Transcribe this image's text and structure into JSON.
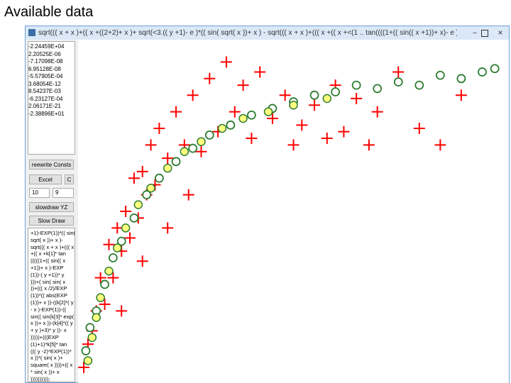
{
  "slide_title": "Available data",
  "window": {
    "title": "sqrt((( x + x )+(( x +((2+2)+ x )+ sqrt(<3.(( y +1)- e )*(( sin( sqrt( x ))+ x ) - sqrt((( x + x )+((( x +(( x +<(1 .. tan((((1+(( sin(( x +1))+ x)- e ))-( y +1))* y ))+( sin( sin( x ))+((..."
  },
  "constants": [
    "-2.24459E+04",
    "2.20525E-06",
    "-7.17098E-08",
    "6.95128E-08",
    "-5.57905E-04",
    "3.68054E-12",
    "8.54237E-03",
    "-6.23127E-04",
    "2.06171E-21",
    "-2.38896E+01"
  ],
  "buttons": {
    "rewrite": "reewrite Consts",
    "excel": "Excel",
    "c": "C",
    "slowdraw_yz": "slowdraw YZ",
    "slow_draw": "Slow Draw"
  },
  "spinners": [
    10,
    9
  ],
  "code_lines": [
    "+1)-EXP(1))*(( sin(",
    "sqrt( x ))+ x )-",
    "sqrt((( x + x )+((( x",
    "+(( x +k[1]* tan",
    "(((((1+(( sin(( x",
    "+1))+ x )-EXP",
    "(1))-( y +1))* y",
    ")))+( sin( sin( x",
    "))+((( x /2)/EXP",
    "(1))*(( abs(EXP",
    "(1))+ x ))-((k[2]*( y",
    "- x )-EXP(1))-((",
    "sin(( sin(k[3]* exp(",
    " x ))+ x ))-(k[4]*(( y",
    "+ y )+3)* y ))- x",
    ")))))+(((EXP",
    "(1)+1)*k[5]* tan",
    "((( y -2)*EXP(1))*",
    " x ))*( sin( x )+",
    "square( x ))))+(( x",
    "* sin( x ))+ x",
    "))))))))));"
  ],
  "chart_data": {
    "type": "scatter",
    "xlim": [
      0,
      100
    ],
    "ylim": [
      0,
      100
    ],
    "series": [
      {
        "color": "#ff0000",
        "marker": "cross",
        "x": [
          0,
          1,
          2,
          3,
          4,
          5,
          6,
          7,
          8,
          9,
          10,
          11,
          12,
          13,
          14,
          15,
          16,
          17,
          18,
          20,
          22,
          24,
          26,
          28,
          30,
          32,
          34,
          36,
          38,
          40,
          42,
          45,
          48,
          50,
          52,
          55,
          58,
          60,
          62,
          65,
          68,
          70,
          75,
          80,
          85,
          90,
          9,
          14,
          20,
          25
        ],
        "values": [
          3,
          10,
          14,
          20,
          30,
          22,
          40,
          30,
          45,
          38,
          50,
          42,
          60,
          48,
          62,
          55,
          70,
          58,
          75,
          66,
          80,
          70,
          85,
          68,
          90,
          74,
          95,
          80,
          88,
          72,
          92,
          78,
          85,
          70,
          76,
          82,
          72,
          88,
          74,
          84,
          70,
          80,
          92,
          75,
          70,
          85,
          20,
          35,
          45,
          55
        ]
      },
      {
        "color": "#2e7d32",
        "marker": "circle",
        "x": [
          0.5,
          1.5,
          3,
          5,
          7,
          9,
          12,
          15,
          18,
          22,
          26,
          30,
          35,
          40,
          45,
          50,
          55,
          60,
          65,
          70,
          75,
          80,
          85,
          90,
          95,
          98
        ],
        "values": [
          8,
          15,
          20,
          28,
          36,
          41,
          48,
          55,
          60,
          65,
          69,
          73,
          76,
          79,
          81,
          83,
          85,
          86,
          88,
          87,
          89,
          88,
          91,
          90,
          92,
          93
        ]
      },
      {
        "color": "#ffff80",
        "marker": "dot",
        "x": [
          1,
          2,
          3,
          4,
          6,
          8,
          10,
          13,
          16,
          20,
          24,
          28,
          33,
          38,
          44,
          50,
          58
        ],
        "values": [
          5,
          12,
          18,
          24,
          32,
          39,
          45,
          52,
          57,
          63,
          68,
          71,
          75,
          78,
          80,
          82,
          84
        ]
      }
    ]
  }
}
